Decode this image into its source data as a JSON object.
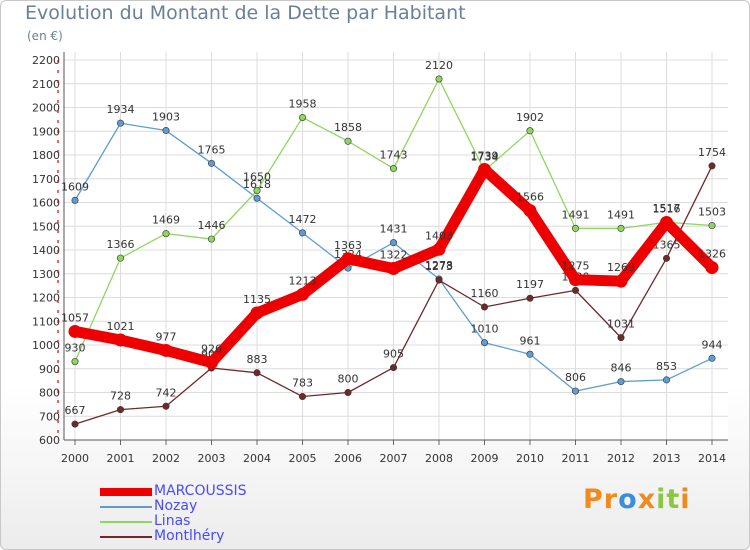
{
  "chart_data": {
    "type": "line",
    "title": "Evolution du Montant de la Dette par Habitant",
    "subtitle": "(en €)",
    "x": [
      "2000",
      "2001",
      "2002",
      "2003",
      "2004",
      "2005",
      "2006",
      "2007",
      "2008",
      "2009",
      "2010",
      "2011",
      "2012",
      "2013",
      "2014"
    ],
    "ylim": [
      600,
      2200
    ],
    "yticks": [
      600,
      700,
      800,
      900,
      1000,
      1100,
      1200,
      1300,
      1400,
      1500,
      1600,
      1700,
      1800,
      1900,
      2000,
      2100,
      2200
    ],
    "grid": true,
    "legend_position": "bottom-left",
    "series": [
      {
        "name": "MARCOUSSIS",
        "color": "#ee0000",
        "values": [
          1057,
          1021,
          977,
          926,
          1135,
          1213,
          1363,
          1322,
          1403,
          1739,
          1566,
          1275,
          1269,
          1516,
          1326
        ]
      },
      {
        "name": "Nozay",
        "color": "#5e9cd2",
        "values": [
          1609,
          1934,
          1903,
          1765,
          1618,
          1472,
          1324,
          1431,
          1278,
          1010,
          961,
          806,
          846,
          853,
          944
        ]
      },
      {
        "name": "Linas",
        "color": "#8ed65f",
        "values": [
          930,
          1366,
          1469,
          1446,
          1650,
          1958,
          1858,
          1743,
          2120,
          1734,
          1902,
          1491,
          1491,
          1517,
          1503
        ]
      },
      {
        "name": "Montlhéry",
        "color": "#6e2a2a",
        "values": [
          667,
          728,
          742,
          903,
          883,
          783,
          800,
          905,
          1273,
          1160,
          1197,
          1230,
          1031,
          1365,
          1754
        ]
      }
    ]
  },
  "logo": {
    "text": "Proxiti",
    "letter_colors": [
      "#f08a1c",
      "#f08a1c",
      "#3b8fd6",
      "#f08a1c",
      "#8dc63f",
      "#8dc63f",
      "#f08a1c"
    ]
  }
}
